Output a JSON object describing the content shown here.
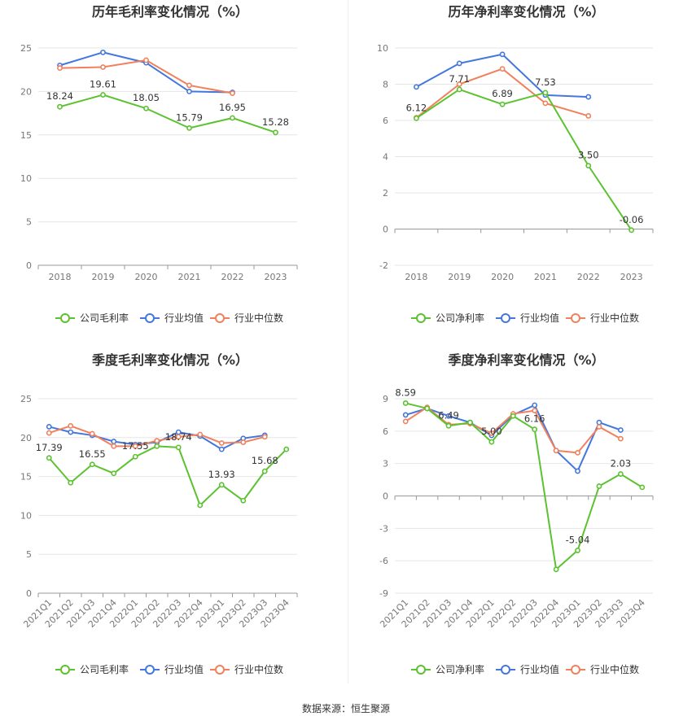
{
  "source": "数据来源：恒生聚源",
  "colors": {
    "company": "#5cc230",
    "industry_avg": "#4477dd",
    "industry_median": "#f0815c",
    "grid": "#e6e6e6",
    "axis": "#999999"
  },
  "chart_data": [
    {
      "type": "line",
      "title": "历年毛利率变化情况（%）",
      "categories": [
        "2018",
        "2019",
        "2020",
        "2021",
        "2022",
        "2023"
      ],
      "ylim": [
        0,
        25
      ],
      "yticks": [
        0,
        5,
        10,
        15,
        20,
        25
      ],
      "grid": true,
      "legend_position": "bottom",
      "series": [
        {
          "name": "公司毛利率",
          "color": "#5cc230",
          "values": [
            18.24,
            19.61,
            18.05,
            15.79,
            16.95,
            15.28
          ],
          "labels": [
            "18.24",
            "19.61",
            "18.05",
            "15.79",
            "16.95",
            "15.28"
          ]
        },
        {
          "name": "行业均值",
          "color": "#4477dd",
          "values": [
            23.0,
            24.5,
            23.3,
            20.0,
            19.9,
            null
          ]
        },
        {
          "name": "行业中位数",
          "color": "#f0815c",
          "values": [
            22.7,
            22.8,
            23.6,
            20.7,
            19.8,
            null
          ]
        }
      ]
    },
    {
      "type": "line",
      "title": "历年净利率变化情况（%）",
      "categories": [
        "2018",
        "2019",
        "2020",
        "2021",
        "2022",
        "2023"
      ],
      "ylim": [
        -2,
        10
      ],
      "yticks": [
        -2,
        0,
        2,
        4,
        6,
        8,
        10
      ],
      "grid": true,
      "legend_position": "bottom",
      "series": [
        {
          "name": "公司净利率",
          "color": "#5cc230",
          "values": [
            6.12,
            7.71,
            6.89,
            7.53,
            3.5,
            -0.06
          ],
          "labels": [
            "6.12",
            "7.71",
            "6.89",
            "7.53",
            "3.50",
            "-0.06"
          ]
        },
        {
          "name": "行业均值",
          "color": "#4477dd",
          "values": [
            7.85,
            9.15,
            9.65,
            7.4,
            7.3,
            null
          ]
        },
        {
          "name": "行业中位数",
          "color": "#f0815c",
          "values": [
            6.15,
            8.0,
            8.85,
            6.95,
            6.25,
            null
          ]
        }
      ]
    },
    {
      "type": "line",
      "title": "季度毛利率变化情况（%）",
      "categories": [
        "2021Q1",
        "2021Q2",
        "2021Q3",
        "2021Q4",
        "2022Q1",
        "2022Q2",
        "2022Q3",
        "2022Q4",
        "2023Q1",
        "2023Q2",
        "2023Q3",
        "2023Q4"
      ],
      "ylim": [
        0,
        25
      ],
      "yticks": [
        0,
        5,
        10,
        15,
        20,
        25
      ],
      "grid": true,
      "legend_position": "bottom",
      "series": [
        {
          "name": "公司毛利率",
          "color": "#5cc230",
          "values": [
            17.39,
            14.2,
            16.55,
            15.4,
            17.55,
            18.9,
            18.74,
            11.3,
            13.93,
            11.9,
            15.68,
            18.5
          ],
          "labels": [
            "17.39",
            "",
            "16.55",
            "",
            "17.55",
            "",
            "18.74",
            "",
            "13.93",
            "",
            "15.68",
            ""
          ]
        },
        {
          "name": "行业均值",
          "color": "#4477dd",
          "values": [
            21.4,
            20.7,
            20.3,
            19.5,
            19.1,
            19.4,
            20.7,
            20.2,
            18.5,
            19.9,
            20.3,
            null
          ]
        },
        {
          "name": "行业中位数",
          "color": "#f0815c",
          "values": [
            20.6,
            21.5,
            20.5,
            18.9,
            18.9,
            19.6,
            20.1,
            20.4,
            19.3,
            19.4,
            20.1,
            null
          ]
        }
      ]
    },
    {
      "type": "line",
      "title": "季度净利率变化情况（%）",
      "categories": [
        "2021Q1",
        "2021Q2",
        "2021Q3",
        "2021Q4",
        "2022Q1",
        "2022Q2",
        "2022Q3",
        "2022Q4",
        "2023Q1",
        "2023Q2",
        "2023Q3",
        "2023Q4"
      ],
      "ylim": [
        -9,
        9
      ],
      "yticks": [
        -9,
        -6,
        -3,
        0,
        3,
        6,
        9
      ],
      "grid": true,
      "legend_position": "bottom",
      "series": [
        {
          "name": "公司净利率",
          "color": "#5cc230",
          "values": [
            8.59,
            8.1,
            6.49,
            6.8,
            5.0,
            7.4,
            6.16,
            -6.8,
            -5.04,
            0.9,
            2.03,
            0.8
          ],
          "labels": [
            "8.59",
            "",
            "6.49",
            "",
            "5.00",
            "",
            "6.16",
            "",
            "-5.04",
            "",
            "2.03",
            ""
          ]
        },
        {
          "name": "行业均值",
          "color": "#4477dd",
          "values": [
            7.5,
            8.1,
            7.4,
            6.8,
            5.6,
            7.5,
            8.4,
            4.2,
            2.3,
            6.8,
            6.1,
            null
          ]
        },
        {
          "name": "行业中位数",
          "color": "#f0815c",
          "values": [
            6.9,
            8.2,
            6.6,
            6.7,
            5.8,
            7.6,
            7.9,
            4.2,
            4.0,
            6.4,
            5.3,
            null
          ]
        }
      ]
    }
  ]
}
